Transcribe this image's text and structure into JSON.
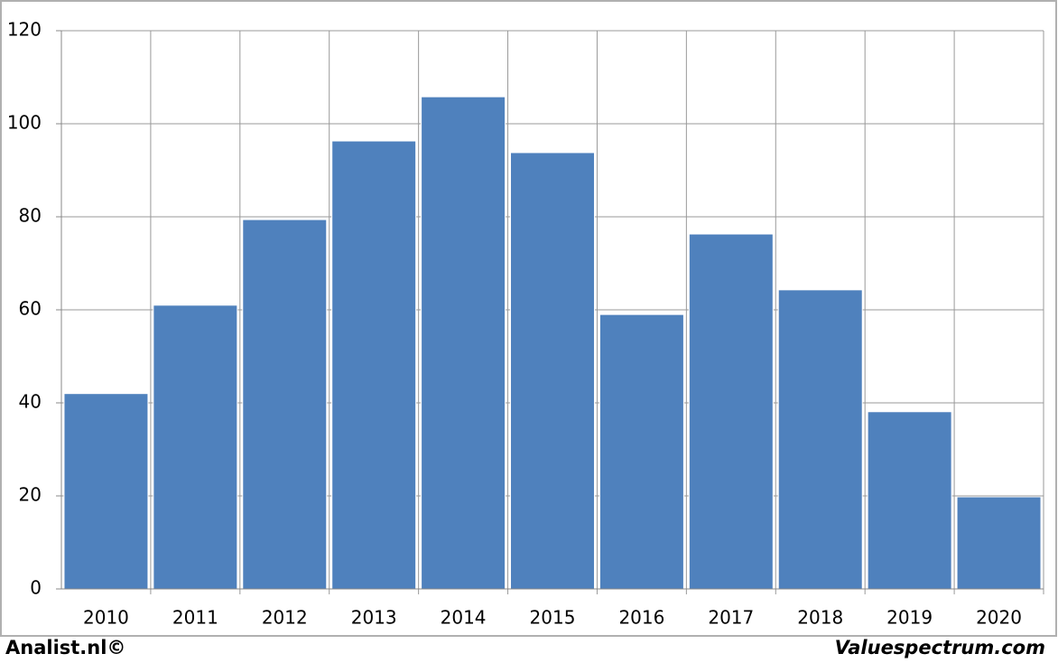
{
  "chart_data": {
    "type": "bar",
    "categories": [
      "2010",
      "2011",
      "2012",
      "2013",
      "2014",
      "2015",
      "2016",
      "2017",
      "2018",
      "2019",
      "2020"
    ],
    "values": [
      42,
      61,
      79.4,
      96.3,
      105.8,
      93.8,
      59,
      76.3,
      64.3,
      38.1,
      19.8
    ],
    "color": "#4f81bd",
    "ylim": [
      0,
      120
    ],
    "yticks": [
      0,
      20,
      40,
      60,
      80,
      100,
      120
    ],
    "grid": true,
    "credits": [
      "Analist.nl©",
      "Valuespectrum.com"
    ]
  }
}
